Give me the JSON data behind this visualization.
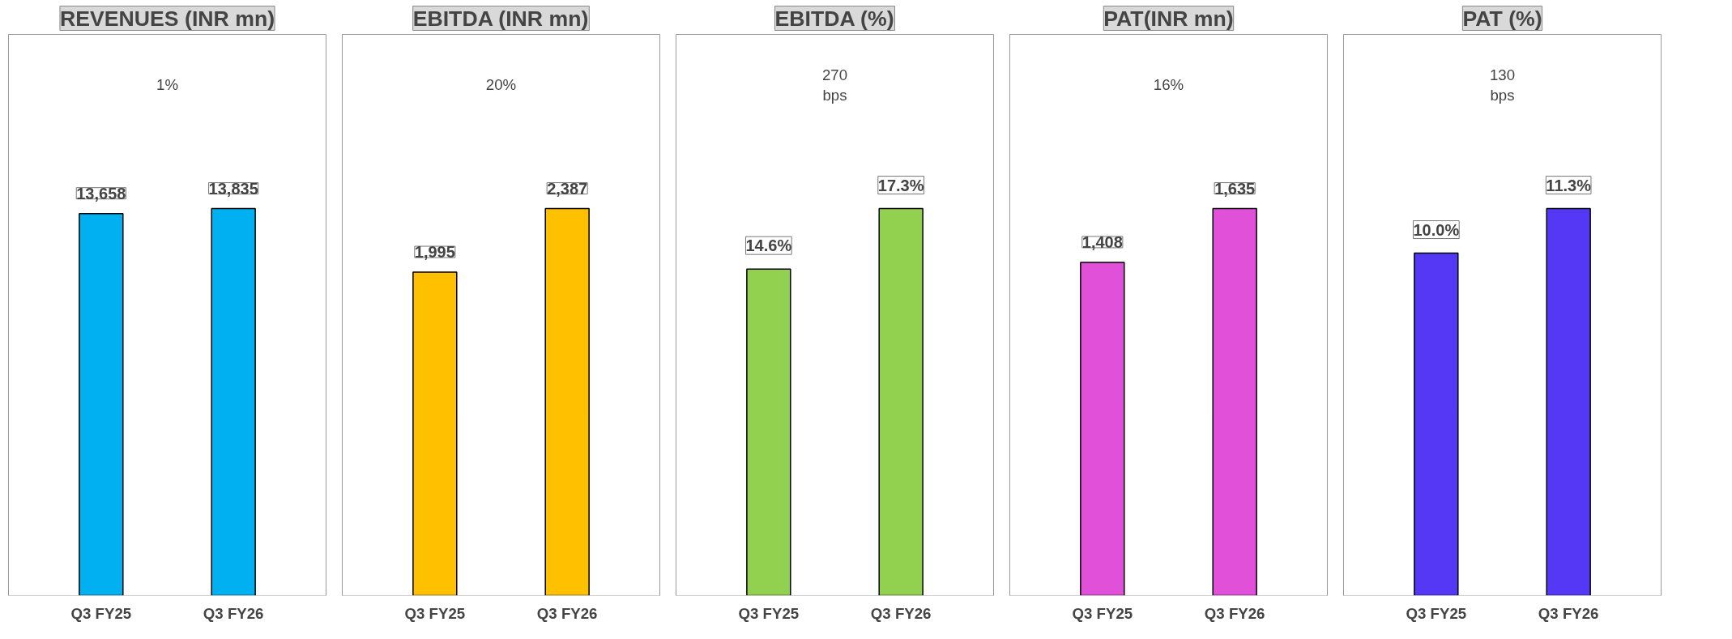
{
  "chart_data": [
    {
      "type": "bar",
      "title": "REVENUES (INR mn)",
      "categories": [
        "Q3 FY25",
        "Q3 FY26"
      ],
      "values": [
        13658,
        13835
      ],
      "colors": [
        "#00b0f0",
        "#00b0f0"
      ],
      "value_labels": [
        "13,658",
        "13,835"
      ],
      "annotations": [
        "1%"
      ],
      "grid": false
    },
    {
      "type": "bar",
      "title": "EBITDA (INR mn)",
      "categories": [
        "Q3 FY25",
        "Q3 FY26"
      ],
      "values": [
        1995,
        2387
      ],
      "colors": [
        "#ffc000",
        "#ffc000"
      ],
      "value_labels": [
        "1,995",
        "2,387"
      ],
      "annotations": [
        "20%"
      ],
      "grid": false
    },
    {
      "type": "bar",
      "title": "EBITDA (%)",
      "categories": [
        "Q3 FY25",
        "Q3 FY26"
      ],
      "values": [
        14.6,
        17.3
      ],
      "colors": [
        "#92d050",
        "#92d050"
      ],
      "value_labels": [
        "14.6%",
        "17.3%"
      ],
      "annotations": [
        "270\nbps"
      ],
      "grid": false
    },
    {
      "type": "bar",
      "title": "PAT(INR mn)",
      "categories": [
        "Q3 FY25",
        "Q3 FY26"
      ],
      "values": [
        1408,
        1635
      ],
      "colors": [
        "#e050d8",
        "#e050d8"
      ],
      "value_labels": [
        "1,408",
        "1,635"
      ],
      "annotations": [
        "16%"
      ],
      "grid": false
    },
    {
      "type": "bar",
      "title": "PAT (%)",
      "categories": [
        "Q3 FY25",
        "Q3 FY26"
      ],
      "values": [
        10.0,
        11.3
      ],
      "colors": [
        "#5438f5",
        "#5438f5"
      ],
      "value_labels": [
        "10.0%",
        "11.3%"
      ],
      "annotations": [
        "130\nbps"
      ],
      "grid": false
    }
  ]
}
